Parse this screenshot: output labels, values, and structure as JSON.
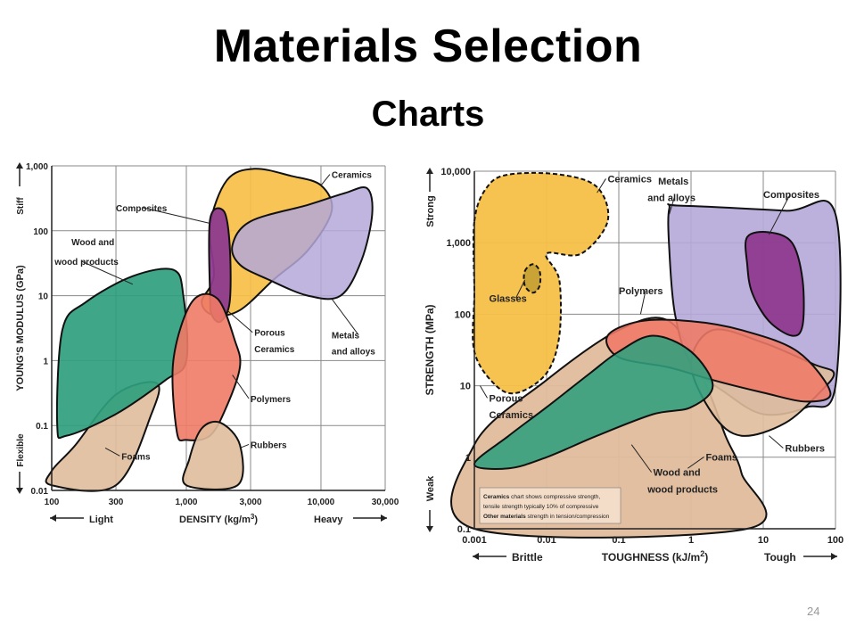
{
  "slide": {
    "title": "Materials Selection",
    "subtitle": "Charts",
    "page_number": "24"
  },
  "colors": {
    "ceramics": "#f6bf47",
    "metals": "#b4a8d8",
    "composites": "#8e3a8e",
    "wood": "#2f9f7d",
    "polymers": "#ef7a66",
    "foams": "#e0bc9c",
    "rubbers": "#e0bc9c",
    "glasses": "#c9a335",
    "grid": "#8a8a8a"
  },
  "chart_data": [
    {
      "type": "ashby-bubble",
      "scale": "log-log",
      "xlabel": "DENSITY (kg/m",
      "xlabel_sup": "3",
      "xlabel_end": ")",
      "x_hint_low": "Light",
      "x_hint_high": "Heavy",
      "ylabel": "YOUNG'S MODULUS (GPa)",
      "y_hint_low": "Flexible",
      "y_hint_high": "Stiff",
      "xlim": [
        100,
        30000
      ],
      "ylim": [
        0.01,
        1000
      ],
      "x_ticks": [
        {
          "value": 100,
          "label": "100"
        },
        {
          "value": 300,
          "label": "300"
        },
        {
          "value": 1000,
          "label": "1,000"
        },
        {
          "value": 3000,
          "label": "3,000"
        },
        {
          "value": 10000,
          "label": "10,000"
        },
        {
          "value": 30000,
          "label": "30,000"
        }
      ],
      "y_ticks": [
        {
          "value": 0.01,
          "label": "0.01"
        },
        {
          "value": 0.1,
          "label": "0.1"
        },
        {
          "value": 1,
          "label": "1"
        },
        {
          "value": 10,
          "label": "10"
        },
        {
          "value": 100,
          "label": "100"
        },
        {
          "value": 1000,
          "label": "1,000"
        }
      ],
      "regions": [
        {
          "key": "foams",
          "label": "",
          "color": "foams",
          "opacity": 0.9,
          "points": [
            [
              100,
              0.02
            ],
            [
              150,
              0.05
            ],
            [
              300,
              0.3
            ],
            [
              600,
              0.45
            ],
            [
              550,
              0.15
            ],
            [
              300,
              0.012
            ],
            [
              100,
              0.012
            ]
          ]
        },
        {
          "key": "wood",
          "label": "",
          "color": "wood",
          "opacity": 0.92,
          "points": [
            [
              110,
              0.1
            ],
            [
              120,
              3
            ],
            [
              180,
              8
            ],
            [
              400,
              20
            ],
            [
              800,
              25
            ],
            [
              950,
              10
            ],
            [
              1000,
              1
            ],
            [
              700,
              0.5
            ],
            [
              300,
              0.15
            ],
            [
              130,
              0.07
            ]
          ]
        },
        {
          "key": "ceramics",
          "label": "",
          "color": "ceramics",
          "opacity": 0.92,
          "points": [
            [
              1500,
              120
            ],
            [
              2000,
              600
            ],
            [
              3200,
              900
            ],
            [
              6000,
              700
            ],
            [
              10000,
              500
            ],
            [
              12000,
              200
            ],
            [
              8000,
              50
            ],
            [
              4500,
              18
            ],
            [
              2500,
              6
            ],
            [
              1600,
              5
            ],
            [
              1300,
              8
            ],
            [
              1600,
              20
            ]
          ]
        },
        {
          "key": "metals",
          "label": "",
          "color": "metals",
          "opacity": 0.85,
          "points": [
            [
              2200,
              60
            ],
            [
              3000,
              140
            ],
            [
              8000,
              250
            ],
            [
              15000,
              380
            ],
            [
              22000,
              450
            ],
            [
              24000,
              180
            ],
            [
              20000,
              35
            ],
            [
              14000,
              10
            ],
            [
              8000,
              10
            ],
            [
              4000,
              18
            ],
            [
              2500,
              30
            ]
          ]
        },
        {
          "key": "composites",
          "label": "",
          "color": "composites",
          "opacity": 0.95,
          "points": [
            [
              1500,
              10
            ],
            [
              1500,
              150
            ],
            [
              1900,
              200
            ],
            [
              2100,
              60
            ],
            [
              2100,
              8
            ],
            [
              1800,
              4
            ],
            [
              1550,
              5
            ]
          ]
        },
        {
          "key": "polymers",
          "label": "",
          "color": "polymers",
          "opacity": 0.9,
          "points": [
            [
              850,
              0.08
            ],
            [
              800,
              1
            ],
            [
              1100,
              8
            ],
            [
              1700,
              9
            ],
            [
              2300,
              2
            ],
            [
              2500,
              0.8
            ],
            [
              2000,
              0.2
            ],
            [
              1500,
              0.07
            ],
            [
              1000,
              0.06
            ]
          ]
        },
        {
          "key": "rubbers",
          "label": "",
          "color": "rubbers",
          "opacity": 0.9,
          "points": [
            [
              1000,
              0.012
            ],
            [
              1050,
              0.03
            ],
            [
              1300,
              0.09
            ],
            [
              1800,
              0.11
            ],
            [
              2500,
              0.05
            ],
            [
              2400,
              0.012
            ]
          ]
        }
      ],
      "labels": [
        {
          "text": "Ceramics",
          "lx": 12000,
          "ly": 650,
          "tx": 10000,
          "ty": 500
        },
        {
          "text": "Composites",
          "lx": 300,
          "ly": 200,
          "tx": 1500,
          "ty": 130
        },
        {
          "text": "Wood and",
          "lx": 140,
          "ly": 60,
          "tx": 0,
          "ty": 0
        },
        {
          "text": "wood products",
          "lx": 105,
          "ly": 30,
          "tx": 400,
          "ty": 15
        },
        {
          "text": "Porous",
          "lx": 3200,
          "ly": 2.4,
          "tx": 2000,
          "ty": 6
        },
        {
          "text": "Ceramics",
          "lx": 3200,
          "ly": 1.35,
          "tx": 0,
          "ty": 0
        },
        {
          "text": "Metals",
          "lx": 12000,
          "ly": 2.2,
          "tx": 12000,
          "ty": 9
        },
        {
          "text": "and alloys",
          "lx": 12000,
          "ly": 1.25,
          "tx": 0,
          "ty": 0
        },
        {
          "text": "Polymers",
          "lx": 3000,
          "ly": 0.23,
          "tx": 2200,
          "ty": 0.6
        },
        {
          "text": "Foams",
          "lx": 330,
          "ly": 0.03,
          "tx": 250,
          "ty": 0.045
        },
        {
          "text": "Rubbers",
          "lx": 3000,
          "ly": 0.045,
          "tx": 2500,
          "ty": 0.045
        }
      ]
    },
    {
      "type": "ashby-bubble",
      "scale": "log-log",
      "xlabel": "TOUGHNESS (kJ/m",
      "xlabel_sup": "2",
      "xlabel_end": ")",
      "x_hint_low": "Brittle",
      "x_hint_high": "Tough",
      "ylabel": "STRENGTH (MPa)",
      "y_hint_low": "Weak",
      "y_hint_high": "Strong",
      "xlim": [
        0.001,
        100
      ],
      "ylim": [
        0.1,
        10000
      ],
      "x_ticks": [
        {
          "value": 0.001,
          "label": "0.001"
        },
        {
          "value": 0.01,
          "label": "0.01"
        },
        {
          "value": 0.1,
          "label": "0.1"
        },
        {
          "value": 1,
          "label": "1"
        },
        {
          "value": 10,
          "label": "10"
        },
        {
          "value": 100,
          "label": "100"
        }
      ],
      "y_ticks": [
        {
          "value": 0.1,
          "label": "0.1"
        },
        {
          "value": 1,
          "label": "1"
        },
        {
          "value": 10,
          "label": "10"
        },
        {
          "value": 100,
          "label": "100"
        },
        {
          "value": 1000,
          "label": "1,000"
        },
        {
          "value": 10000,
          "label": "10,000"
        }
      ],
      "regions": [
        {
          "key": "foams",
          "label": "",
          "color": "foams",
          "opacity": 0.95,
          "points": [
            [
              0.001,
              0.1
            ],
            [
              0.001,
              1.5
            ],
            [
              0.01,
              12
            ],
            [
              0.1,
              60
            ],
            [
              0.5,
              80
            ],
            [
              1.5,
              12
            ],
            [
              3,
              2
            ],
            [
              5,
              0.6
            ],
            [
              6,
              0.1
            ]
          ]
        },
        {
          "key": "metals",
          "label": "",
          "color": "metals",
          "opacity": 0.9,
          "points": [
            [
              0.5,
              3000
            ],
            [
              0.7,
              3300
            ],
            [
              20,
              2800
            ],
            [
              100,
              2500
            ],
            [
              100,
              10
            ],
            [
              40,
              5
            ],
            [
              10,
              4
            ],
            [
              3,
              8
            ],
            [
              1,
              20
            ],
            [
              0.6,
              100
            ],
            [
              0.5,
              800
            ]
          ]
        },
        {
          "key": "composites",
          "label": "",
          "color": "composites",
          "opacity": 0.95,
          "points": [
            [
              6,
              1200
            ],
            [
              12,
              1400
            ],
            [
              25,
              1000
            ],
            [
              35,
              300
            ],
            [
              35,
              70
            ],
            [
              25,
              50
            ],
            [
              12,
              80
            ],
            [
              7,
              200
            ],
            [
              6,
              500
            ]
          ]
        },
        {
          "key": "rubbers",
          "label": "",
          "color": "rubbers",
          "opacity": 0.9,
          "points": [
            [
              1,
              20
            ],
            [
              2,
              60
            ],
            [
              10,
              40
            ],
            [
              50,
              20
            ],
            [
              95,
              15
            ],
            [
              60,
              8
            ],
            [
              20,
              3
            ],
            [
              5,
              2
            ],
            [
              2,
              4
            ]
          ]
        },
        {
          "key": "polymers",
          "label": "",
          "color": "polymers",
          "opacity": 0.88,
          "points": [
            [
              0.07,
              50
            ],
            [
              0.2,
              80
            ],
            [
              1,
              80
            ],
            [
              5,
              60
            ],
            [
              30,
              30
            ],
            [
              85,
              8
            ],
            [
              40,
              6
            ],
            [
              10,
              8
            ],
            [
              2,
              12
            ],
            [
              0.5,
              18
            ],
            [
              0.1,
              25
            ]
          ]
        },
        {
          "key": "wood",
          "label": "",
          "color": "wood",
          "opacity": 0.88,
          "points": [
            [
              0.001,
              0.8
            ],
            [
              0.003,
              2
            ],
            [
              0.01,
              5
            ],
            [
              0.04,
              15
            ],
            [
              0.1,
              30
            ],
            [
              0.3,
              50
            ],
            [
              1,
              30
            ],
            [
              2,
              10
            ],
            [
              1,
              5
            ],
            [
              0.3,
              4
            ],
            [
              0.05,
              2
            ],
            [
              0.01,
              1
            ],
            [
              0.003,
              0.7
            ]
          ]
        },
        {
          "key": "ceramics",
          "label": "",
          "color": "ceramics",
          "opacity": 0.95,
          "dashed": true,
          "points": [
            [
              0.001,
              2000
            ],
            [
              0.0015,
              6000
            ],
            [
              0.003,
              9000
            ],
            [
              0.015,
              9000
            ],
            [
              0.05,
              6000
            ],
            [
              0.07,
              2000
            ],
            [
              0.03,
              700
            ],
            [
              0.01,
              700
            ],
            [
              0.015,
              300
            ],
            [
              0.015,
              50
            ],
            [
              0.01,
              15
            ],
            [
              0.004,
              8
            ],
            [
              0.002,
              10
            ],
            [
              0.001,
              30
            ],
            [
              0.001,
              200
            ]
          ]
        },
        {
          "key": "glasses",
          "label": "",
          "color": "glasses",
          "opacity": 1,
          "dashed": true,
          "points": [
            [
              0.005,
              400
            ],
            [
              0.0065,
              500
            ],
            [
              0.008,
              400
            ],
            [
              0.008,
              250
            ],
            [
              0.0065,
              200
            ],
            [
              0.005,
              250
            ]
          ]
        }
      ],
      "labels": [
        {
          "text": "Ceramics",
          "lx": 0.07,
          "ly": 7000,
          "tx": 0.05,
          "ty": 5000
        },
        {
          "text": "Metals",
          "lx": 0.35,
          "ly": 6500,
          "tx": 0,
          "ty": 0
        },
        {
          "text": "and alloys",
          "lx": 0.25,
          "ly": 3800,
          "tx": 0.5,
          "ty": 2500
        },
        {
          "text": "Composites",
          "lx": 10,
          "ly": 4200,
          "tx": 12,
          "ty": 1300
        },
        {
          "text": "Glasses",
          "lx": 0.0016,
          "ly": 150,
          "tx": 0.005,
          "ty": 300
        },
        {
          "text": "Polymers",
          "lx": 0.1,
          "ly": 190,
          "tx": 0.2,
          "ty": 100
        },
        {
          "text": "Porous",
          "lx": 0.0016,
          "ly": 6,
          "tx": 0.0012,
          "ty": 10
        },
        {
          "text": "Ceramics",
          "lx": 0.0016,
          "ly": 3.5,
          "tx": 0,
          "ty": 0
        },
        {
          "text": "Rubbers",
          "lx": 20,
          "ly": 1.2,
          "tx": 12,
          "ty": 2
        },
        {
          "text": "Foams",
          "lx": 1.6,
          "ly": 0.9,
          "tx": 0.9,
          "ty": 0.7
        },
        {
          "text": "Wood and",
          "lx": 0.3,
          "ly": 0.55,
          "tx": 0.15,
          "ty": 1.5
        },
        {
          "text": "wood products",
          "lx": 0.25,
          "ly": 0.32,
          "tx": 0,
          "ty": 0
        }
      ],
      "note": [
        {
          "bold": "Ceramics",
          "text": " chart shows compressive strength,"
        },
        {
          "bold": "",
          "text": "tensile strength typically 10% of compressive"
        },
        {
          "bold": "Other materials",
          "text": " strength in tension/compression"
        }
      ]
    }
  ]
}
